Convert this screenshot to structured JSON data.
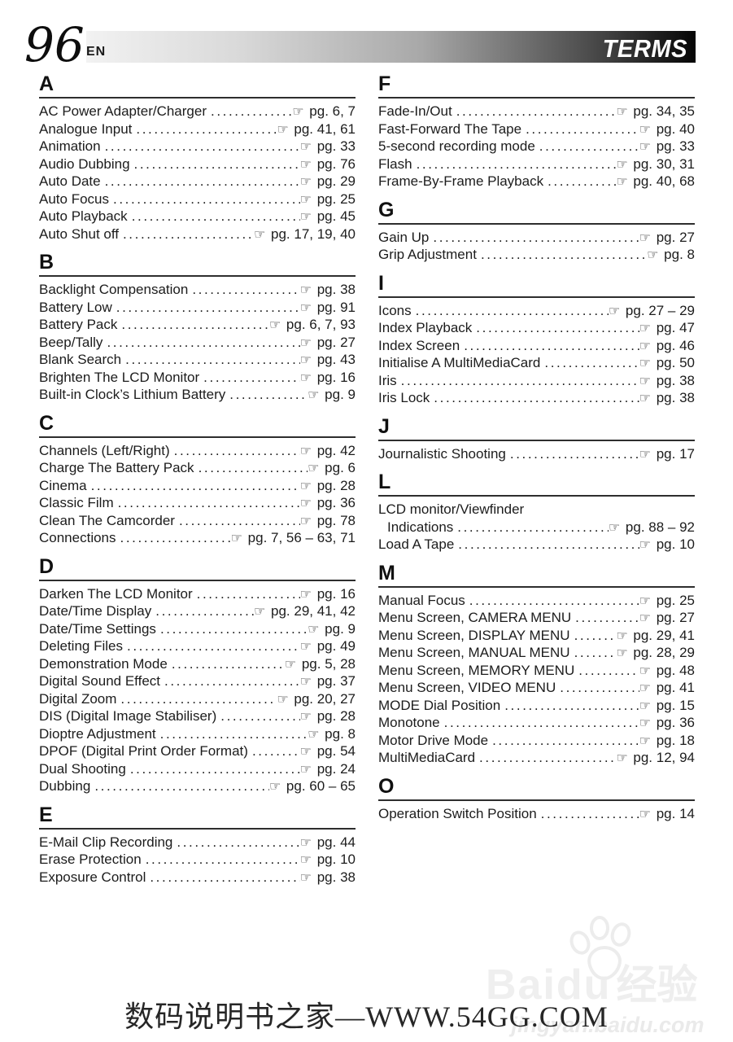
{
  "page": {
    "number": "96",
    "lang": "EN",
    "header_title": "TERMS"
  },
  "icons": {
    "pointing_hand": "☞"
  },
  "index": {
    "leader_dot": ".",
    "sections": [
      {
        "letter": "A",
        "column": "left",
        "entries": [
          {
            "term": "AC Power Adapter/Charger",
            "ref": "pg. 6, 7"
          },
          {
            "term": "Analogue Input",
            "ref": "pg. 41, 61"
          },
          {
            "term": "Animation",
            "ref": "pg. 33"
          },
          {
            "term": "Audio Dubbing",
            "ref": "pg. 76"
          },
          {
            "term": "Auto Date",
            "ref": "pg. 29"
          },
          {
            "term": "Auto Focus",
            "ref": "pg. 25"
          },
          {
            "term": "Auto Playback",
            "ref": "pg. 45"
          },
          {
            "term": "Auto Shut off",
            "ref": "pg. 17, 19, 40"
          }
        ]
      },
      {
        "letter": "B",
        "column": "left",
        "entries": [
          {
            "term": "Backlight Compensation",
            "ref": "pg. 38"
          },
          {
            "term": "Battery Low",
            "ref": "pg. 91"
          },
          {
            "term": "Battery Pack",
            "ref": "pg. 6, 7, 93"
          },
          {
            "term": "Beep/Tally",
            "ref": "pg. 27"
          },
          {
            "term": "Blank Search",
            "ref": "pg. 43"
          },
          {
            "term": "Brighten The LCD Monitor",
            "ref": "pg. 16"
          },
          {
            "term": "Built-in Clock’s Lithium Battery",
            "ref": "pg. 9"
          }
        ]
      },
      {
        "letter": "C",
        "column": "left",
        "entries": [
          {
            "term": "Channels (Left/Right)",
            "ref": "pg. 42"
          },
          {
            "term": "Charge The Battery Pack",
            "ref": "pg. 6"
          },
          {
            "term": "Cinema",
            "ref": "pg. 28"
          },
          {
            "term": "Classic Film",
            "ref": "pg. 36"
          },
          {
            "term": "Clean The Camcorder",
            "ref": "pg. 78"
          },
          {
            "term": "Connections",
            "ref": "pg. 7, 56 – 63, 71"
          }
        ]
      },
      {
        "letter": "D",
        "column": "left",
        "entries": [
          {
            "term": "Darken The LCD Monitor",
            "ref": "pg. 16"
          },
          {
            "term": "Date/Time Display",
            "ref": "pg. 29, 41, 42"
          },
          {
            "term": "Date/Time Settings",
            "ref": "pg. 9"
          },
          {
            "term": "Deleting Files",
            "ref": "pg. 49"
          },
          {
            "term": "Demonstration Mode",
            "ref": "pg. 5, 28"
          },
          {
            "term": "Digital Sound Effect",
            "ref": "pg. 37"
          },
          {
            "term": "Digital Zoom",
            "ref": "pg. 20, 27"
          },
          {
            "term": "DIS (Digital Image Stabiliser)",
            "ref": "pg. 28"
          },
          {
            "term": "Dioptre Adjustment",
            "ref": "pg. 8"
          },
          {
            "term": "DPOF (Digital Print Order Format)",
            "ref": "pg. 54"
          },
          {
            "term": "Dual Shooting",
            "ref": "pg. 24"
          },
          {
            "term": "Dubbing",
            "ref": "pg. 60 – 65"
          }
        ]
      },
      {
        "letter": "E",
        "column": "left",
        "entries": [
          {
            "term": "E-Mail Clip Recording",
            "ref": "pg. 44"
          },
          {
            "term": "Erase Protection",
            "ref": "pg. 10"
          },
          {
            "term": "Exposure Control",
            "ref": "pg. 38"
          }
        ]
      },
      {
        "letter": "F",
        "column": "right",
        "entries": [
          {
            "term": "Fade-In/Out",
            "ref": "pg. 34, 35"
          },
          {
            "term": "Fast-Forward The Tape",
            "ref": "pg. 40"
          },
          {
            "term": "5-second recording mode",
            "ref": "pg. 33"
          },
          {
            "term": "Flash",
            "ref": "pg. 30, 31"
          },
          {
            "term": "Frame-By-Frame Playback",
            "ref": "pg. 40, 68"
          }
        ]
      },
      {
        "letter": "G",
        "column": "right",
        "entries": [
          {
            "term": "Gain Up",
            "ref": "pg. 27"
          },
          {
            "term": "Grip Adjustment",
            "ref": "pg. 8"
          }
        ]
      },
      {
        "letter": "I",
        "column": "right",
        "entries": [
          {
            "term": "Icons",
            "ref": "pg. 27 – 29"
          },
          {
            "term": "Index Playback",
            "ref": "pg. 47"
          },
          {
            "term": "Index Screen",
            "ref": "pg. 46"
          },
          {
            "term": "Initialise A MultiMediaCard",
            "ref": "pg. 50"
          },
          {
            "term": "Iris",
            "ref": "pg. 38"
          },
          {
            "term": "Iris Lock",
            "ref": "pg. 38"
          }
        ]
      },
      {
        "letter": "J",
        "column": "right",
        "entries": [
          {
            "term": "Journalistic Shooting",
            "ref": "pg. 17"
          }
        ]
      },
      {
        "letter": "L",
        "column": "right",
        "entries": [
          {
            "term_pre": "LCD monitor/Viewfinder",
            "term": "Indications",
            "ref": "pg. 88 – 92"
          },
          {
            "term": "Load A Tape",
            "ref": "pg. 10"
          }
        ]
      },
      {
        "letter": "M",
        "column": "right",
        "entries": [
          {
            "term": "Manual Focus",
            "ref": "pg. 25"
          },
          {
            "term": "Menu Screen, CAMERA MENU",
            "ref": "pg. 27"
          },
          {
            "term": "Menu Screen, DISPLAY MENU",
            "ref": "pg. 29, 41"
          },
          {
            "term": "Menu Screen, MANUAL MENU",
            "ref": "pg. 28, 29"
          },
          {
            "term": "Menu Screen, MEMORY MENU",
            "ref": "pg. 48"
          },
          {
            "term": "Menu Screen, VIDEO MENU",
            "ref": "pg. 41"
          },
          {
            "term": "MODE Dial Position",
            "ref": "pg. 15"
          },
          {
            "term": "Monotone",
            "ref": "pg. 36"
          },
          {
            "term": "Motor Drive Mode",
            "ref": "pg. 18"
          },
          {
            "term": "MultiMediaCard",
            "ref": "pg. 12, 94"
          }
        ]
      },
      {
        "letter": "O",
        "column": "right",
        "entries": [
          {
            "term": "Operation Switch Position",
            "ref": "pg. 14"
          }
        ]
      }
    ]
  },
  "watermark": {
    "brand": "Baidu",
    "brand_cn": "经验",
    "url": "jingyan.baidu.com"
  },
  "footer": {
    "site_text": "数码说明书之家—WWW.54GG.COM"
  },
  "colors": {
    "bar_start": "#f2f2f2",
    "bar_end": "#060606",
    "text": "#1c1c1c",
    "rule": "#2e2e2e",
    "watermark": "#ededed"
  }
}
